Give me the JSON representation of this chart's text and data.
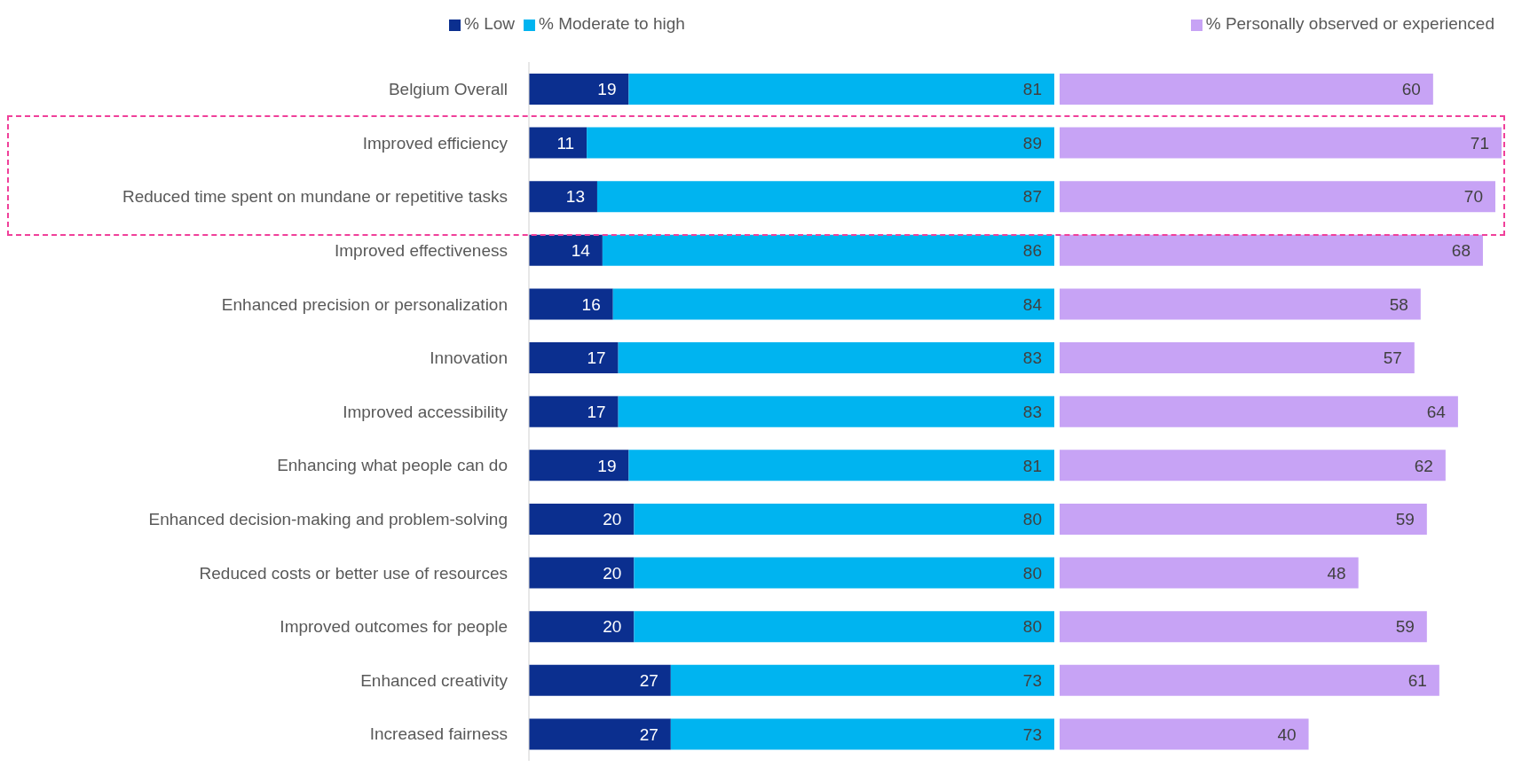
{
  "chart_data": [
    {
      "type": "bar",
      "orientation": "horizontal",
      "stacked": true,
      "data_labels": true,
      "legend": "top",
      "grid": false,
      "categories": [
        "Belgium Overall",
        "Improved efficiency",
        "Reduced time spent on mundane or repetitive tasks",
        "Improved effectiveness",
        "Enhanced precision or personalization",
        "Innovation",
        "Improved accessibility",
        "Enhancing what people can do",
        "Enhanced decision-making and problem-solving",
        "Reduced costs or better use of resources",
        "Improved outcomes for people",
        "Enhanced creativity",
        "Increased fairness"
      ],
      "series": [
        {
          "name": "% Low",
          "color": "#0b2f8f",
          "values": [
            19,
            11,
            13,
            14,
            16,
            17,
            17,
            19,
            20,
            20,
            20,
            27,
            27
          ]
        },
        {
          "name": "% Moderate to high",
          "color": "#00b4f0",
          "values": [
            81,
            89,
            87,
            86,
            84,
            83,
            83,
            81,
            80,
            80,
            80,
            73,
            73
          ]
        }
      ]
    },
    {
      "type": "bar",
      "orientation": "horizontal",
      "data_labels": true,
      "legend": "top right",
      "grid": false,
      "tick_labels": false,
      "categories": [
        null,
        null,
        null,
        null,
        null,
        null,
        null,
        null,
        null,
        null,
        null,
        null,
        null
      ],
      "series": [
        {
          "name": "% Personally observed or experienced",
          "color": "#c7a3f5",
          "values": [
            60,
            71,
            70,
            68,
            58,
            57,
            64,
            62,
            59,
            48,
            59,
            61,
            40
          ]
        }
      ]
    }
  ]
}
